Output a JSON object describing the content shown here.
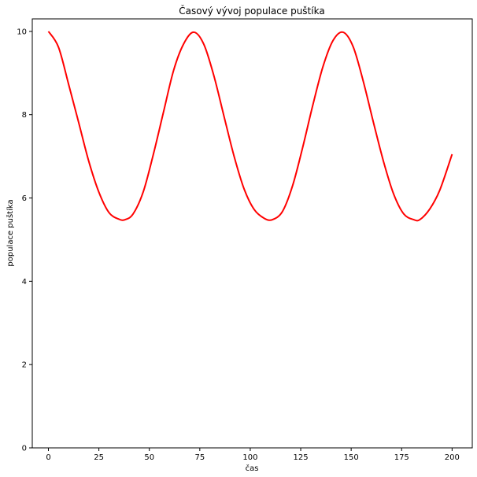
{
  "chart_data": {
    "type": "line",
    "title": "Časový vývoj populace puštíka",
    "xlabel": "čas",
    "ylabel": "populace puštíka",
    "xlim": [
      -8,
      210
    ],
    "ylim": [
      0,
      10.3
    ],
    "xticks": [
      0,
      25,
      50,
      75,
      100,
      125,
      150,
      175,
      200
    ],
    "yticks": [
      0,
      2,
      4,
      6,
      8,
      10
    ],
    "grid": false,
    "series": [
      {
        "color": "#ff0000",
        "x": [
          0,
          5,
          10,
          15,
          20,
          25,
          30,
          35,
          38,
          42,
          47,
          52,
          57,
          62,
          67,
          72,
          77,
          82,
          87,
          92,
          97,
          102,
          107,
          111,
          116,
          121,
          126,
          131,
          136,
          141,
          146,
          151,
          156,
          161,
          166,
          171,
          176,
          181,
          184,
          189,
          194,
          200
        ],
        "y": [
          10.0,
          9.62,
          8.73,
          7.81,
          6.88,
          6.14,
          5.65,
          5.49,
          5.48,
          5.62,
          6.15,
          7.05,
          8.06,
          9.06,
          9.7,
          9.98,
          9.69,
          8.93,
          7.96,
          7.0,
          6.21,
          5.72,
          5.51,
          5.48,
          5.68,
          6.3,
          7.22,
          8.23,
          9.15,
          9.78,
          9.98,
          9.63,
          8.8,
          7.82,
          6.88,
          6.1,
          5.62,
          5.48,
          5.48,
          5.74,
          6.2,
          7.05
        ]
      }
    ]
  }
}
